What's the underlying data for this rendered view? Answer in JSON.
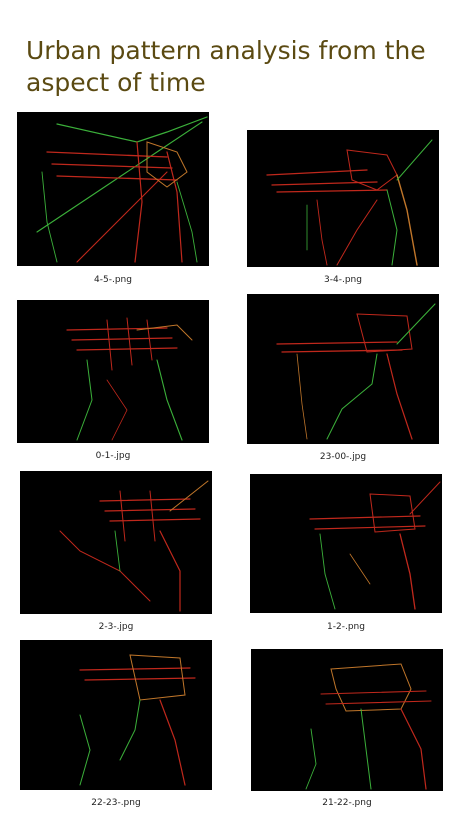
{
  "page": {
    "title": "Urban pattern analysis from the aspect of time"
  },
  "colors": {
    "title": "#5b4a12",
    "image_background": "#000000",
    "trace_red": "#c0281c",
    "trace_green": "#3bb03a",
    "trace_orange": "#c0762a"
  },
  "thumbnails": [
    {
      "caption": "4-5-.png"
    },
    {
      "caption": "3-4-.png"
    },
    {
      "caption": "0-1-.jpg"
    },
    {
      "caption": "23-00-.jpg"
    },
    {
      "caption": "2-3-.jpg"
    },
    {
      "caption": "1-2-.png"
    },
    {
      "caption": "22-23-.png"
    },
    {
      "caption": "21-22-.png"
    }
  ]
}
